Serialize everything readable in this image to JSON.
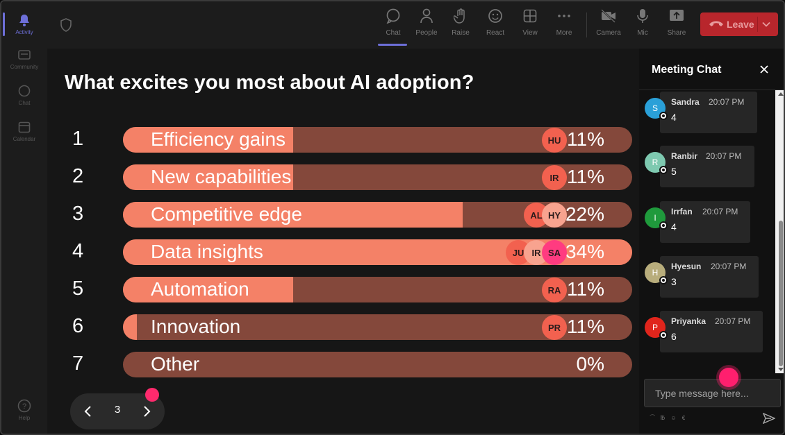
{
  "rail": {
    "items": [
      {
        "label": "Activity",
        "active": true
      },
      {
        "label": "Community"
      },
      {
        "label": "Chat"
      },
      {
        "label": "Calendar"
      }
    ],
    "help": "Help"
  },
  "topbar": {
    "buttons": [
      {
        "label": "Chat",
        "icon": "chat-icon",
        "active": true
      },
      {
        "label": "People",
        "icon": "people-icon"
      },
      {
        "label": "Raise",
        "icon": "hand-icon"
      },
      {
        "label": "React",
        "icon": "smile-icon"
      },
      {
        "label": "View",
        "icon": "grid-icon"
      },
      {
        "label": "More",
        "icon": "more-icon"
      },
      {
        "label": "Camera",
        "icon": "camera-off-icon"
      },
      {
        "label": "Mic",
        "icon": "mic-icon"
      },
      {
        "label": "Share",
        "icon": "share-icon"
      }
    ],
    "leave_label": "Leave",
    "leave_color": "#b8262c"
  },
  "poll": {
    "question": "What excites you most about AI adoption?",
    "options": [
      {
        "num": "1",
        "label": "Efficiency gains",
        "percent": "11%",
        "fill": 11,
        "voters": [
          "HU"
        ]
      },
      {
        "num": "2",
        "label": "New capabilities",
        "percent": "11%",
        "fill": 11,
        "voters": [
          "IR"
        ]
      },
      {
        "num": "3",
        "label": "Competitive edge",
        "percent": "22%",
        "fill": 22,
        "voters": [
          "AL",
          "HY"
        ]
      },
      {
        "num": "4",
        "label": "Data insights",
        "percent": "34%",
        "fill": 34,
        "voters": [
          "JU",
          "IR",
          "SA"
        ]
      },
      {
        "num": "5",
        "label": "Automation",
        "percent": "11%",
        "fill": 11,
        "voters": [
          "RA"
        ]
      },
      {
        "num": "6",
        "label": "Innovation",
        "percent": "11%",
        "fill": 11,
        "voters": [
          "PR"
        ]
      },
      {
        "num": "7",
        "label": "Other",
        "percent": "0%",
        "fill": 0,
        "voters": []
      }
    ],
    "colors": {
      "bar_bg": "#84483b",
      "bar_fill": "#f48167",
      "accent_dot": "#ff2a6d"
    }
  },
  "pager": {
    "page": "3"
  },
  "chat": {
    "title": "Meeting Chat",
    "messages": [
      {
        "initial": "S",
        "name": "Sandra",
        "time": "20:07 PM",
        "text": "4",
        "color": "#2aa0d8"
      },
      {
        "initial": "R",
        "name": "Ranbir",
        "time": "20:07 PM",
        "text": "5",
        "color": "#7ec9b0"
      },
      {
        "initial": "I",
        "name": "Irrfan",
        "time": "20:07 PM",
        "text": "4",
        "color": "#1f9a3c"
      },
      {
        "initial": "H",
        "name": "Hyesun",
        "time": "20:07 PM",
        "text": "3",
        "color": "#b8ad7c"
      },
      {
        "initial": "P",
        "name": "Priyanka",
        "time": "20:07 PM",
        "text": "6",
        "color": "#e0251c"
      }
    ],
    "input_placeholder": "Type message here...",
    "format_icons": "⁀ ℔ ☺ €"
  }
}
